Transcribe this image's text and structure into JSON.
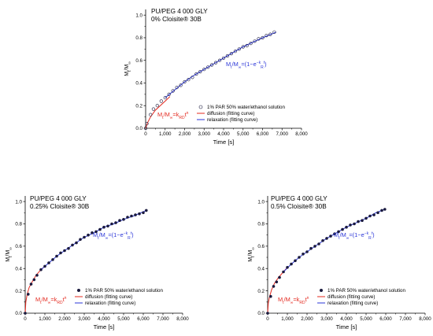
{
  "colors": {
    "diffusion": "#e4281e",
    "relaxation": "#2a35d8",
    "marker": "#1a1a3e",
    "axis": "#000000"
  },
  "chart_data": [
    {
      "id": "p0",
      "type": "scatter",
      "title": [
        "PU/PEG 4 000 GLY",
        "0% Cloisite® 30B"
      ],
      "xlabel": "Time [s]",
      "ylabel": "Mt/M∞",
      "xlim": [
        0,
        8000
      ],
      "ylim": [
        0,
        1.05
      ],
      "xticks": [
        0,
        1000,
        2000,
        3000,
        4000,
        5000,
        6000,
        7000,
        8000
      ],
      "xtick_labels": [
        "0",
        "1,000",
        "2,000",
        "3,000",
        "4,000",
        "5,000",
        "6,000",
        "7,000",
        "8,000"
      ],
      "yticks": [
        0.0,
        0.2,
        0.4,
        0.6,
        0.8,
        1.0
      ],
      "ytick_labels": [
        "0.0",
        "0.2",
        "0.4",
        "0.6",
        "0.8",
        "1.0"
      ],
      "marker": "open",
      "equation_diffusion": "Mt/M∞=kRDt^n",
      "equation_relaxation": "Mt/M∞=(1−e^(−kRt))",
      "legend": [
        "1% PAR 50% water/ethanol solution",
        "diffusion (fitting curve)",
        "relaxation (fitting curve)"
      ],
      "series": [
        {
          "name": "1% PAR 50% water/ethanol solution",
          "x": [
            0,
            60,
            250,
            400,
            600,
            800,
            1000,
            1200,
            1400,
            1600,
            1800,
            2000,
            2200,
            2400,
            2600,
            2800,
            3000,
            3200,
            3400,
            3600,
            3800,
            4000,
            4200,
            4400,
            4600,
            4800,
            5000,
            5200,
            5400,
            5600,
            5800,
            6000,
            6200,
            6400,
            6600
          ],
          "y": [
            0.0,
            0.04,
            0.12,
            0.17,
            0.2,
            0.24,
            0.27,
            0.3,
            0.33,
            0.36,
            0.38,
            0.41,
            0.43,
            0.45,
            0.48,
            0.5,
            0.52,
            0.54,
            0.56,
            0.58,
            0.6,
            0.62,
            0.64,
            0.66,
            0.68,
            0.7,
            0.72,
            0.73,
            0.75,
            0.77,
            0.79,
            0.8,
            0.82,
            0.83,
            0.85
          ]
        },
        {
          "name": "diffusion (fitting curve)",
          "x": [
            0,
            100,
            250,
            500,
            750,
            1000,
            1250
          ],
          "y": [
            0.0,
            0.05,
            0.1,
            0.16,
            0.2,
            0.24,
            0.28
          ]
        },
        {
          "name": "relaxation (fitting curve)",
          "x": [
            1000,
            1500,
            2000,
            2500,
            3000,
            3500,
            4000,
            4500,
            5000,
            5500,
            6000,
            6700
          ],
          "y": [
            0.27,
            0.34,
            0.41,
            0.47,
            0.52,
            0.57,
            0.62,
            0.67,
            0.72,
            0.76,
            0.8,
            0.85
          ]
        }
      ]
    },
    {
      "id": "p1",
      "type": "scatter",
      "title": [
        "PU/PEG 4 000 GLY",
        "0.25% Cloisite® 30B"
      ],
      "xlabel": "Time [s]",
      "ylabel": "Mt/M∞",
      "xlim": [
        0,
        8000
      ],
      "ylim": [
        0,
        1.05
      ],
      "xticks": [
        0,
        1000,
        2000,
        3000,
        4000,
        5000,
        6000,
        7000,
        8000
      ],
      "xtick_labels": [
        "0",
        "1,000",
        "2,000",
        "3,000",
        "4,000",
        "5,000",
        "6,000",
        "7,000",
        "8,000"
      ],
      "yticks": [
        0.0,
        0.2,
        0.4,
        0.6,
        0.8,
        1.0
      ],
      "ytick_labels": [
        "0.0",
        "0.2",
        "0.4",
        "0.6",
        "0.8",
        "1.0"
      ],
      "marker": "filled",
      "equation_diffusion": "Mt/M∞=kRDt^n",
      "equation_relaxation": "Mt/M∞=(1−e^(−kRt))",
      "legend": [
        "1% PAR 50% water/ethanol solution",
        "diffusion (fitting curve)",
        "relaxation (fitting curve)"
      ],
      "series": [
        {
          "name": "1% PAR 50% water/ethanol solution",
          "x": [
            0,
            150,
            300,
            450,
            600,
            800,
            1000,
            1200,
            1400,
            1600,
            1800,
            2000,
            2200,
            2400,
            2600,
            2800,
            3000,
            3200,
            3400,
            3600,
            3800,
            4000,
            4200,
            4400,
            4600,
            4800,
            5000,
            5200,
            5400,
            5600,
            5800,
            6000,
            6150
          ],
          "y": [
            0.0,
            0.17,
            0.26,
            0.3,
            0.34,
            0.39,
            0.42,
            0.45,
            0.48,
            0.51,
            0.54,
            0.56,
            0.58,
            0.61,
            0.63,
            0.66,
            0.68,
            0.7,
            0.72,
            0.73,
            0.75,
            0.77,
            0.78,
            0.8,
            0.81,
            0.83,
            0.84,
            0.86,
            0.87,
            0.88,
            0.89,
            0.9,
            0.92
          ]
        },
        {
          "name": "diffusion (fitting curve)",
          "x": [
            0,
            30,
            100,
            200,
            350,
            550,
            800,
            1000
          ],
          "y": [
            0.0,
            0.1,
            0.17,
            0.23,
            0.28,
            0.34,
            0.39,
            0.42
          ]
        },
        {
          "name": "relaxation (fitting curve)",
          "x": [
            800,
            1200,
            1600,
            2000,
            2500,
            3000,
            3500,
            4000,
            4500,
            5000,
            5500,
            6150
          ],
          "y": [
            0.39,
            0.45,
            0.51,
            0.56,
            0.62,
            0.68,
            0.72,
            0.77,
            0.8,
            0.84,
            0.87,
            0.92
          ]
        }
      ]
    },
    {
      "id": "p2",
      "type": "scatter",
      "title": [
        "PU/PEG 4 000 GLY",
        "0.5% Cloisite® 30B"
      ],
      "xlabel": "Time [s]",
      "ylabel": "Mt/M∞",
      "xlim": [
        0,
        8000
      ],
      "ylim": [
        0,
        1.05
      ],
      "xticks": [
        0,
        1000,
        2000,
        3000,
        4000,
        5000,
        6000,
        7000,
        8000
      ],
      "xtick_labels": [
        "0",
        "1,000",
        "2,000",
        "3,000",
        "4,000",
        "5,000",
        "6,000",
        "7,000",
        "8,000"
      ],
      "yticks": [
        0.0,
        0.2,
        0.4,
        0.6,
        0.8,
        1.0
      ],
      "ytick_labels": [
        "0.0",
        "0.2",
        "0.4",
        "0.6",
        "0.8",
        "1.0"
      ],
      "marker": "filled",
      "equation_diffusion": "Mt/M∞=kRDt^n",
      "equation_relaxation": "Mt/M∞=(1−e^(−kRt))",
      "legend": [
        "1% PAR 50% water/ethanol solution",
        "diffusion (fitting curve)",
        "relaxation (fitting curve)"
      ],
      "series": [
        {
          "name": "1% PAR 50% water/ethanol solution",
          "x": [
            0,
            150,
            300,
            450,
            600,
            800,
            1000,
            1200,
            1400,
            1600,
            1800,
            2000,
            2200,
            2400,
            2600,
            2800,
            3000,
            3200,
            3400,
            3600,
            3800,
            4000,
            4200,
            4400,
            4600,
            4800,
            5000,
            5200,
            5400,
            5600,
            5800,
            5950
          ],
          "y": [
            0.0,
            0.15,
            0.24,
            0.28,
            0.32,
            0.37,
            0.41,
            0.44,
            0.47,
            0.5,
            0.53,
            0.55,
            0.58,
            0.6,
            0.62,
            0.65,
            0.67,
            0.69,
            0.71,
            0.73,
            0.75,
            0.77,
            0.79,
            0.8,
            0.82,
            0.83,
            0.85,
            0.87,
            0.88,
            0.9,
            0.92,
            0.93
          ]
        },
        {
          "name": "diffusion (fitting curve)",
          "x": [
            0,
            30,
            100,
            200,
            350,
            550,
            800,
            1000
          ],
          "y": [
            0.0,
            0.09,
            0.15,
            0.21,
            0.27,
            0.32,
            0.37,
            0.41
          ]
        },
        {
          "name": "relaxation (fitting curve)",
          "x": [
            800,
            1200,
            1600,
            2000,
            2500,
            3000,
            3500,
            4000,
            4500,
            5000,
            5500,
            5950
          ],
          "y": [
            0.37,
            0.44,
            0.5,
            0.55,
            0.61,
            0.67,
            0.72,
            0.77,
            0.81,
            0.85,
            0.9,
            0.93
          ]
        }
      ]
    }
  ]
}
